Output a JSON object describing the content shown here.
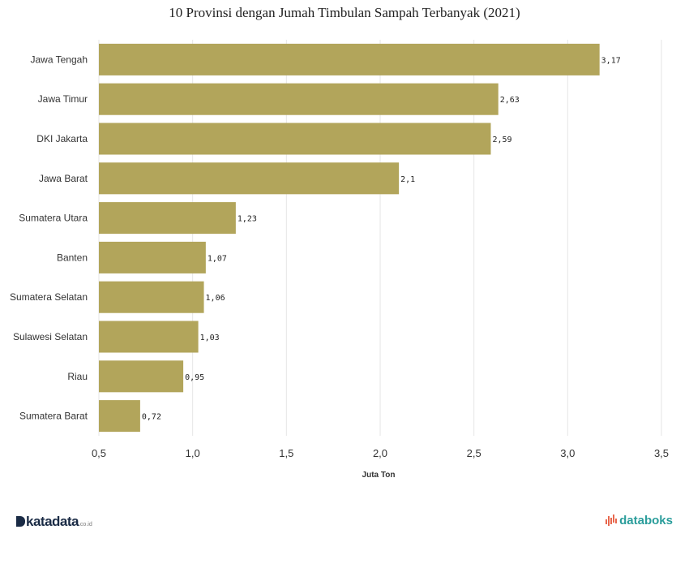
{
  "chart_data": {
    "type": "bar",
    "orientation": "horizontal",
    "title": "10 Provinsi dengan Jumah Timbulan Sampah Terbanyak (2021)",
    "xlabel": "Juta Ton",
    "ylabel": "",
    "categories": [
      "Jawa Tengah",
      "Jawa Timur",
      "DKI Jakarta",
      "Jawa Barat",
      "Sumatera Utara",
      "Banten",
      "Sumatera Selatan",
      "Sulawesi Selatan",
      "Riau",
      "Sumatera Barat"
    ],
    "values": [
      3.17,
      2.63,
      2.59,
      2.1,
      1.23,
      1.07,
      1.06,
      1.03,
      0.95,
      0.72
    ],
    "data_labels": [
      "3,17",
      "2,63",
      "2,59",
      "2,1",
      "1,23",
      "1,07",
      "1,06",
      "1,03",
      "0,95",
      "0,72"
    ],
    "xlim": [
      0.5,
      3.5
    ],
    "x_ticks": [
      0.5,
      1.0,
      1.5,
      2.0,
      2.5,
      3.0,
      3.5
    ],
    "x_tick_labels": [
      "0,5",
      "1,0",
      "1,5",
      "2,0",
      "2,5",
      "3,0",
      "3,5"
    ],
    "grid": true,
    "bar_color": "#b2a55b"
  },
  "footer": {
    "left_brand": "katadata",
    "left_brand_suffix": ".co.id",
    "right_brand": "databoks"
  }
}
